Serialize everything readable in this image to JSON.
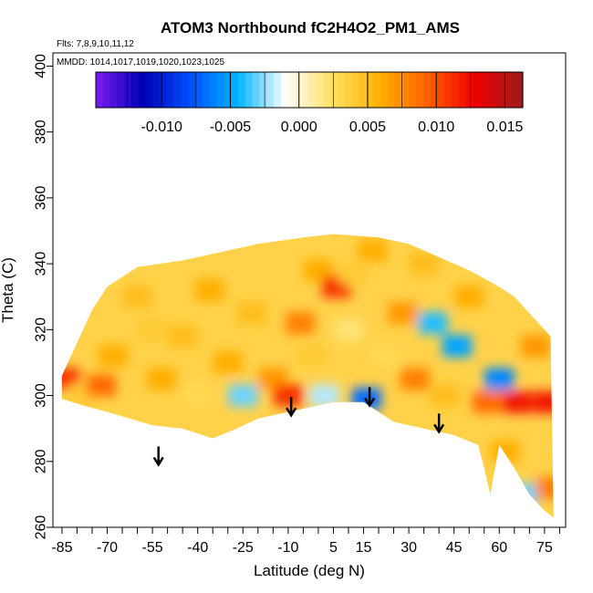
{
  "chart_data": {
    "type": "heatmap",
    "title": "ATOM3 Northbound fC2H4O2_PM1_AMS",
    "flights_note": "Flts: 7,8,9,10,11,12",
    "dates_note": "MMDD: 1014,1017,1019,1020,1023,1025",
    "xlabel": "Latitude (deg N)",
    "ylabel": "Theta (C)",
    "xlim": [
      -88,
      82
    ],
    "ylim": [
      260,
      404
    ],
    "x_tick_labels": [
      "-85",
      "-70",
      "-55",
      "-40",
      "-25",
      "-10",
      "5",
      "15",
      "30",
      "45",
      "60",
      "75"
    ],
    "y_tick_labels": [
      "260",
      "280",
      "300",
      "320",
      "340",
      "360",
      "380",
      "400"
    ],
    "colorbar": {
      "range": [
        -0.0148,
        0.0163
      ],
      "tick_labels": [
        "-0.010",
        "-0.005",
        "0.000",
        "0.005",
        "0.010",
        "0.015"
      ],
      "colors": [
        "#7a1cf0",
        "#0000b4",
        "#0050ff",
        "#00b4ff",
        "#ffffff",
        "#ffe060",
        "#ffb000",
        "#ff6000",
        "#ee0000",
        "#9b1c1c"
      ]
    },
    "coverage": {
      "upper_theta": [
        [
          -85,
          306
        ],
        [
          -80,
          316
        ],
        [
          -75,
          326
        ],
        [
          -70,
          333
        ],
        [
          -60,
          339
        ],
        [
          -45,
          341
        ],
        [
          -35,
          343
        ],
        [
          -20,
          346
        ],
        [
          -5,
          348
        ],
        [
          5,
          349
        ],
        [
          20,
          348
        ],
        [
          30,
          346
        ],
        [
          40,
          342
        ],
        [
          50,
          338
        ],
        [
          60,
          333
        ],
        [
          65,
          330
        ],
        [
          70,
          325
        ],
        [
          77,
          318
        ]
      ],
      "lower_theta": [
        [
          -85,
          299
        ],
        [
          -78,
          297
        ],
        [
          -70,
          295
        ],
        [
          -55,
          291
        ],
        [
          -45,
          290
        ],
        [
          -35,
          287
        ],
        [
          -27,
          290
        ],
        [
          -20,
          293
        ],
        [
          -10,
          295
        ],
        [
          0,
          297
        ],
        [
          5,
          298
        ],
        [
          15,
          298
        ],
        [
          25,
          292
        ],
        [
          35,
          290
        ],
        [
          45,
          288
        ],
        [
          53,
          285
        ],
        [
          55,
          278
        ],
        [
          57,
          270
        ],
        [
          60,
          285
        ],
        [
          65,
          278
        ],
        [
          70,
          270
        ],
        [
          75,
          265
        ],
        [
          78,
          263
        ]
      ]
    },
    "cells": [
      {
        "lat": -84,
        "theta": 305,
        "value": 0.011
      },
      {
        "lat": -78,
        "theta": 300,
        "value": 0.004
      },
      {
        "lat": -68,
        "theta": 312,
        "value": 0.006
      },
      {
        "lat": -60,
        "theta": 330,
        "value": 0.005
      },
      {
        "lat": -52,
        "theta": 305,
        "value": 0.006
      },
      {
        "lat": -45,
        "theta": 318,
        "value": 0.005
      },
      {
        "lat": -40,
        "theta": 300,
        "value": 0.003
      },
      {
        "lat": -36,
        "theta": 332,
        "value": 0.006
      },
      {
        "lat": -30,
        "theta": 310,
        "value": 0.006
      },
      {
        "lat": -25,
        "theta": 300,
        "value": -0.003
      },
      {
        "lat": -22,
        "theta": 325,
        "value": 0.005
      },
      {
        "lat": -15,
        "theta": 305,
        "value": 0.007
      },
      {
        "lat": -10,
        "theta": 300,
        "value": 0.011
      },
      {
        "lat": -6,
        "theta": 322,
        "value": 0.008
      },
      {
        "lat": 0,
        "theta": 338,
        "value": 0.006
      },
      {
        "lat": 2,
        "theta": 300,
        "value": -0.002
      },
      {
        "lat": 6,
        "theta": 333,
        "value": 0.011
      },
      {
        "lat": 10,
        "theta": 320,
        "value": 0.002
      },
      {
        "lat": 16,
        "theta": 299,
        "value": -0.007
      },
      {
        "lat": 18,
        "theta": 344,
        "value": 0.006
      },
      {
        "lat": 22,
        "theta": 312,
        "value": 0.003
      },
      {
        "lat": 28,
        "theta": 325,
        "value": 0.007
      },
      {
        "lat": 32,
        "theta": 305,
        "value": 0.008
      },
      {
        "lat": 38,
        "theta": 322,
        "value": -0.004
      },
      {
        "lat": 42,
        "theta": 300,
        "value": 0.005
      },
      {
        "lat": 46,
        "theta": 315,
        "value": -0.005
      },
      {
        "lat": 50,
        "theta": 330,
        "value": 0.006
      },
      {
        "lat": 56,
        "theta": 298,
        "value": 0.009
      },
      {
        "lat": 60,
        "theta": 305,
        "value": -0.006
      },
      {
        "lat": 62,
        "theta": 283,
        "value": 0.006
      },
      {
        "lat": 66,
        "theta": 298,
        "value": 0.012
      },
      {
        "lat": 68,
        "theta": 270,
        "value": -0.003
      },
      {
        "lat": 72,
        "theta": 315,
        "value": 0.007
      },
      {
        "lat": 76,
        "theta": 298,
        "value": 0.012
      },
      {
        "lat": 77,
        "theta": 272,
        "value": 0.008
      },
      {
        "lat": -2,
        "theta": 312,
        "value": 0.004
      },
      {
        "lat": 12,
        "theta": 337,
        "value": 0.004
      },
      {
        "lat": 35,
        "theta": 340,
        "value": 0.005
      },
      {
        "lat": -55,
        "theta": 320,
        "value": 0.004
      },
      {
        "lat": -72,
        "theta": 303,
        "value": 0.009
      }
    ],
    "arrows": [
      {
        "lat": -53,
        "theta": 279
      },
      {
        "lat": -9,
        "theta": 294
      },
      {
        "lat": 17,
        "theta": 297
      },
      {
        "lat": 40,
        "theta": 289
      }
    ]
  }
}
